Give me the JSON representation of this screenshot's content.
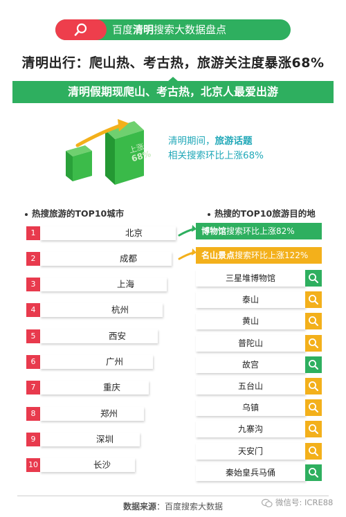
{
  "header": {
    "pill_prefix": "百度",
    "pill_bold": "清明",
    "pill_suffix": "搜索大数据盘点",
    "headline": "清明出行：爬山热、考古热，旅游关注度暴涨68%",
    "band_text": "清明假期现爬山、考古热，北京人最爱出游"
  },
  "illustration": {
    "cube_label": "上涨",
    "cube_value": "68%",
    "line1_prefix": "清明期间，",
    "line1_bold": "旅游话题",
    "line2": "相关搜索环比上涨68%"
  },
  "left": {
    "title": "热搜旅游的TOP10城市",
    "cities": [
      {
        "rank": "1",
        "name": "北京"
      },
      {
        "rank": "2",
        "name": "成都"
      },
      {
        "rank": "3",
        "name": "上海"
      },
      {
        "rank": "4",
        "name": "杭州"
      },
      {
        "rank": "5",
        "name": "西安"
      },
      {
        "rank": "6",
        "name": "广州"
      },
      {
        "rank": "7",
        "name": "重庆"
      },
      {
        "rank": "8",
        "name": "郑州"
      },
      {
        "rank": "9",
        "name": "深圳"
      },
      {
        "rank": "10",
        "name": "长沙"
      }
    ]
  },
  "right": {
    "title": "热搜的TOP10旅游目的地",
    "categories": [
      {
        "bold": "博物馆",
        "text": "搜索环比上涨82%",
        "color": "#2eaf5f"
      },
      {
        "bold": "名山景点",
        "text": "搜索环比上涨122%",
        "color": "#f3b01b"
      }
    ],
    "destinations": [
      {
        "name": "三星堆博物馆",
        "icon": "search-icon",
        "color": "#2eaf5f"
      },
      {
        "name": "泰山",
        "icon": "search-icon",
        "color": "#f3b01b"
      },
      {
        "name": "黄山",
        "icon": "search-icon",
        "color": "#f3b01b"
      },
      {
        "name": "普陀山",
        "icon": "search-icon",
        "color": "#f3b01b"
      },
      {
        "name": "故宫",
        "icon": "search-icon",
        "color": "#2eaf5f"
      },
      {
        "name": "五台山",
        "icon": "search-icon",
        "color": "#f3b01b"
      },
      {
        "name": "乌镇",
        "icon": "search-icon",
        "color": "#f3b01b"
      },
      {
        "name": "九寨沟",
        "icon": "search-icon",
        "color": "#f3b01b"
      },
      {
        "name": "天安门",
        "icon": "search-icon",
        "color": "#f3b01b"
      },
      {
        "name": "秦始皇兵马俑",
        "icon": "search-icon",
        "color": "#2eaf5f"
      }
    ]
  },
  "footer": {
    "source_label": "数据来源",
    "source_value": "：百度搜索大数据",
    "wechat": "微信号: ICRE88"
  },
  "colors": {
    "green": "#2eaf5f",
    "red": "#e83a4d",
    "yellow": "#f3b01b",
    "teal": "#21a8b8"
  }
}
